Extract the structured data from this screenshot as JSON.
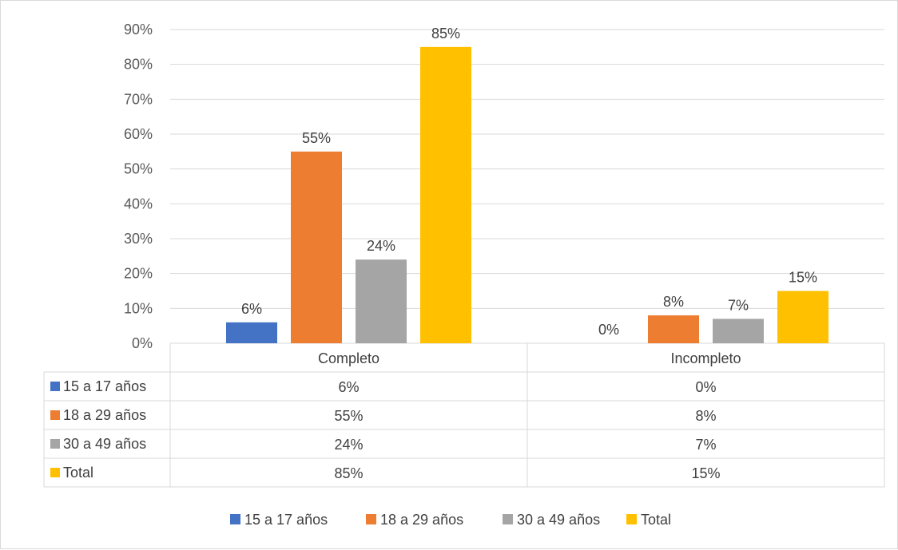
{
  "chart_data": {
    "type": "bar",
    "categories": [
      "Completo",
      "Incompleto"
    ],
    "series": [
      {
        "name": "15 a 17 años",
        "color": "#4472C4",
        "values": [
          6,
          0
        ],
        "labels": [
          "6%",
          "0%"
        ]
      },
      {
        "name": "18 a 29 años",
        "color": "#ED7D31",
        "values": [
          55,
          8
        ],
        "labels": [
          "55%",
          "8%"
        ]
      },
      {
        "name": "30 a 49 años",
        "color": "#A5A5A5",
        "values": [
          24,
          7
        ],
        "labels": [
          "24%",
          "7%"
        ]
      },
      {
        "name": "Total",
        "color": "#FFC000",
        "values": [
          85,
          15
        ],
        "labels": [
          "85%",
          "15%"
        ]
      }
    ],
    "ylim": [
      0,
      90
    ],
    "yticks": [
      "0%",
      "10%",
      "20%",
      "30%",
      "40%",
      "50%",
      "60%",
      "70%",
      "80%",
      "90%"
    ],
    "grid": true,
    "data_table": true,
    "legend_position": "bottom"
  }
}
